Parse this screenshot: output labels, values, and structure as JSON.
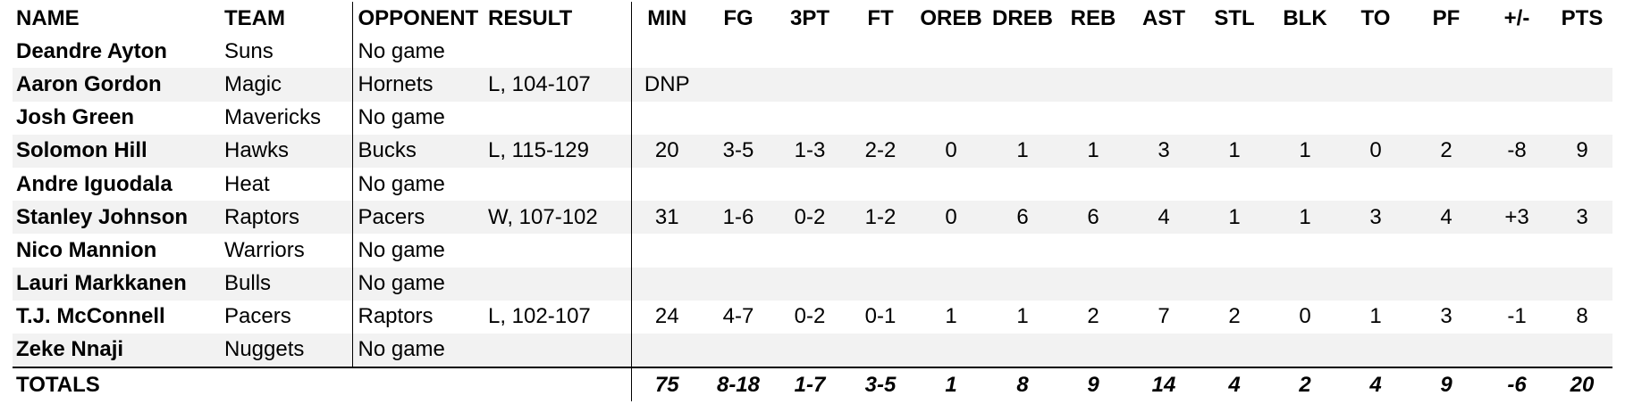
{
  "headers": [
    "NAME",
    "TEAM",
    "OPPONENT",
    "RESULT",
    "MIN",
    "FG",
    "3PT",
    "FT",
    "OREB",
    "DREB",
    "REB",
    "AST",
    "STL",
    "BLK",
    "TO",
    "PF",
    "+/-",
    "PTS"
  ],
  "rows": [
    [
      "Deandre Ayton",
      "Suns",
      "No game",
      "",
      "",
      "",
      "",
      "",
      "",
      "",
      "",
      "",
      "",
      "",
      "",
      "",
      "",
      ""
    ],
    [
      "Aaron Gordon",
      "Magic",
      "Hornets",
      "L, 104-107",
      "DNP",
      "",
      "",
      "",
      "",
      "",
      "",
      "",
      "",
      "",
      "",
      "",
      "",
      ""
    ],
    [
      "Josh Green",
      "Mavericks",
      "No game",
      "",
      "",
      "",
      "",
      "",
      "",
      "",
      "",
      "",
      "",
      "",
      "",
      "",
      "",
      ""
    ],
    [
      "Solomon Hill",
      "Hawks",
      "Bucks",
      "L, 115-129",
      "20",
      "3-5",
      "1-3",
      "2-2",
      "0",
      "1",
      "1",
      "3",
      "1",
      "1",
      "0",
      "2",
      "-8",
      "9"
    ],
    [
      "Andre Iguodala",
      "Heat",
      "No game",
      "",
      "",
      "",
      "",
      "",
      "",
      "",
      "",
      "",
      "",
      "",
      "",
      "",
      "",
      ""
    ],
    [
      "Stanley Johnson",
      "Raptors",
      "Pacers",
      "W, 107-102",
      "31",
      "1-6",
      "0-2",
      "1-2",
      "0",
      "6",
      "6",
      "4",
      "1",
      "1",
      "3",
      "4",
      "+3",
      "3"
    ],
    [
      "Nico Mannion",
      "Warriors",
      "No game",
      "",
      "",
      "",
      "",
      "",
      "",
      "",
      "",
      "",
      "",
      "",
      "",
      "",
      "",
      ""
    ],
    [
      "Lauri Markkanen",
      "Bulls",
      "No game",
      "",
      "",
      "",
      "",
      "",
      "",
      "",
      "",
      "",
      "",
      "",
      "",
      "",
      "",
      ""
    ],
    [
      "T.J. McConnell",
      "Pacers",
      "Raptors",
      "L, 102-107",
      "24",
      "4-7",
      "0-2",
      "0-1",
      "1",
      "1",
      "2",
      "7",
      "2",
      "0",
      "1",
      "3",
      "-1",
      "8"
    ],
    [
      "Zeke Nnaji",
      "Nuggets",
      "No game",
      "",
      "",
      "",
      "",
      "",
      "",
      "",
      "",
      "",
      "",
      "",
      "",
      "",
      "",
      ""
    ]
  ],
  "totals": {
    "label": "TOTALS",
    "values": [
      "75",
      "8-18",
      "1-7",
      "3-5",
      "1",
      "8",
      "9",
      "14",
      "4",
      "2",
      "4",
      "9",
      "-6",
      "20"
    ]
  },
  "colors": {
    "row_shade": "#f2f2f2",
    "text": "#000000",
    "rule": "#000000"
  }
}
